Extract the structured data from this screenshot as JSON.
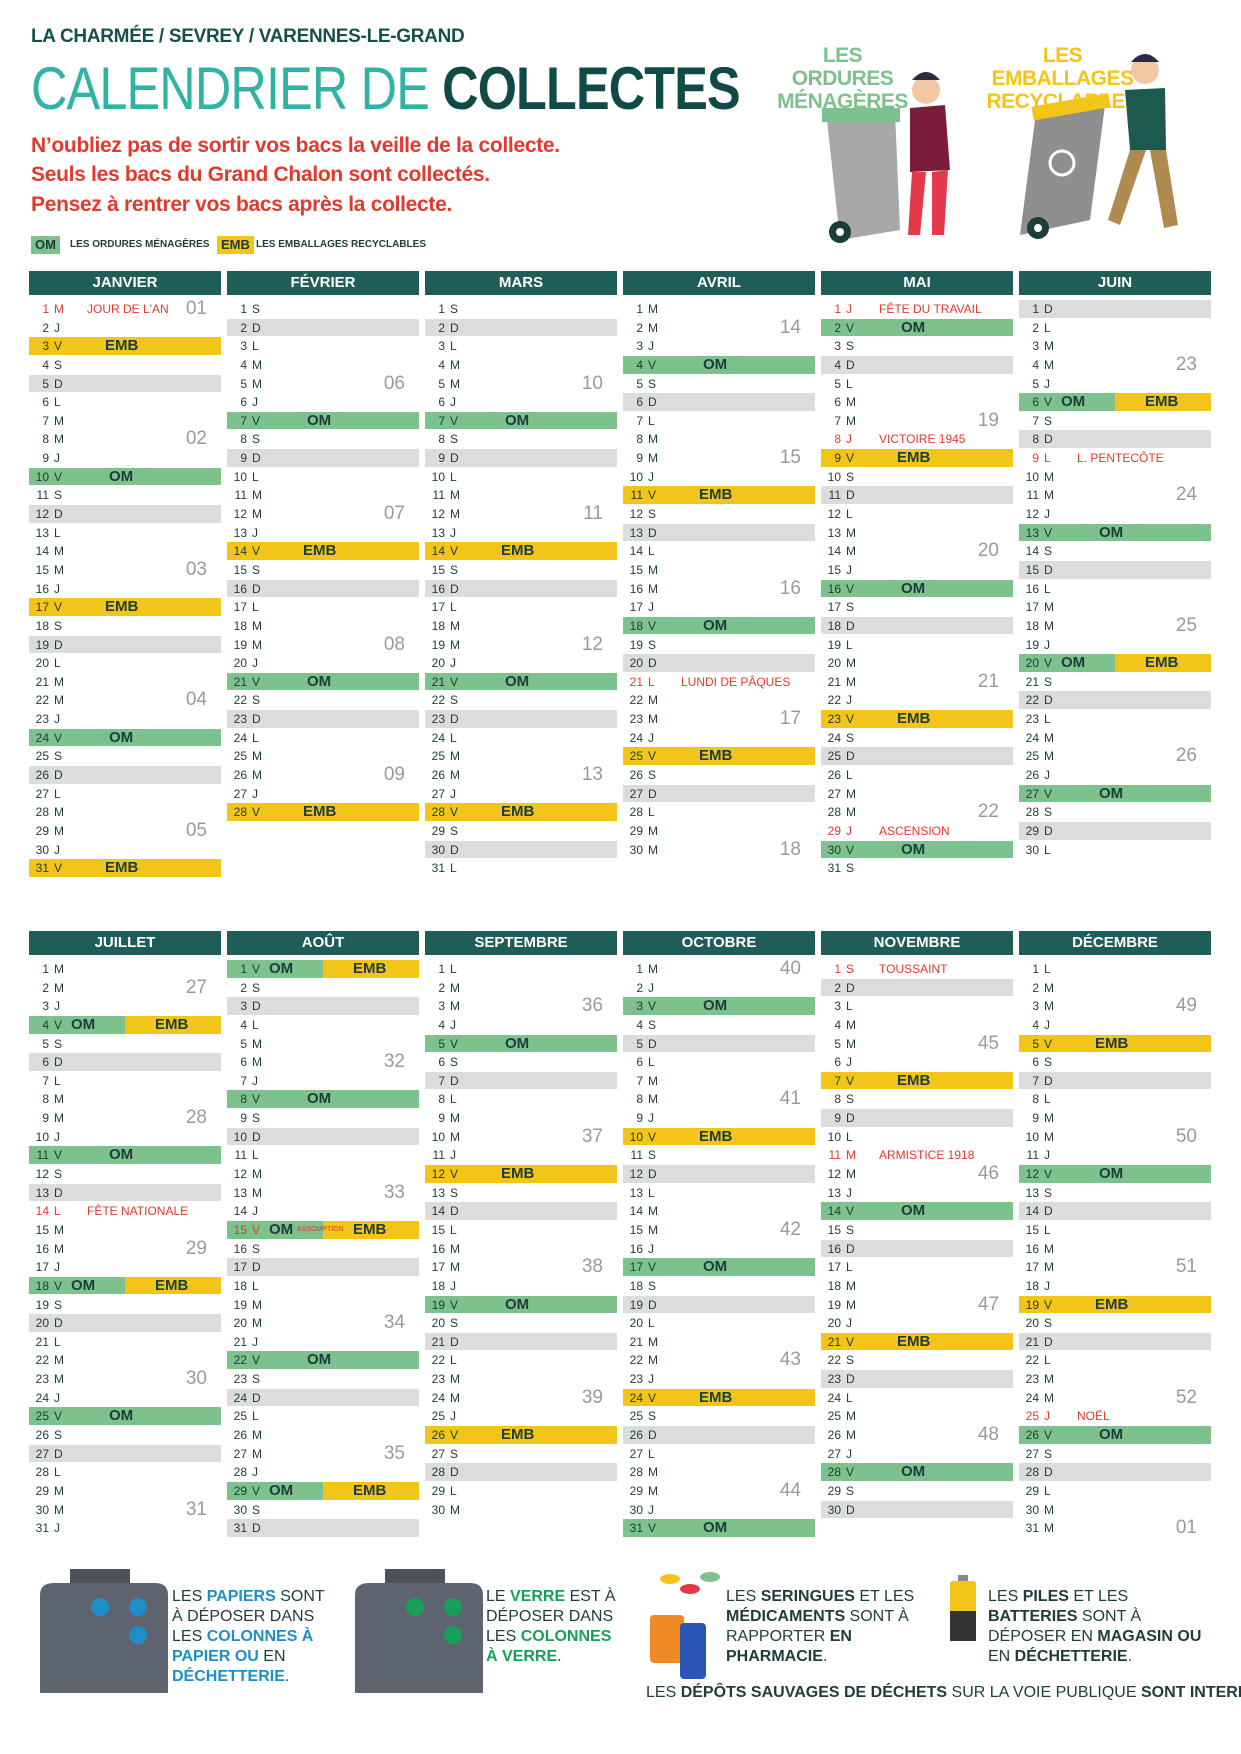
{
  "header": {
    "location": "LA CHARMÉE / SEVREY / VARENNES-LE-GRAND",
    "title_light": "CALENDRIER DE",
    "title_bold": "COLLECTES",
    "notices": [
      "N’oubliez pas de sortir vos bacs la veille de la collecte.",
      "Seuls les bacs du Grand Chalon sont collectés.",
      "Pensez à rentrer vos bacs après la collecte."
    ]
  },
  "illustrations": {
    "om_caption": [
      "LES ORDURES",
      "MÉNAGÈRES"
    ],
    "emb_caption": [
      "LES EMBALLAGES",
      "RECYCLABLES"
    ]
  },
  "legend": {
    "om": "OM",
    "om_label": "LES ORDURES MÉNAGÈRES",
    "emb": "EMB",
    "emb_label": "LES EMBALLAGES RECYCLABLES"
  },
  "months": [
    {
      "name": "JANVIER",
      "days": [
        1,
        2,
        3,
        4,
        5,
        6,
        7,
        8,
        9,
        10,
        11,
        12,
        13,
        14,
        15,
        16,
        17,
        18,
        19,
        20,
        21,
        22,
        23,
        24,
        25,
        26,
        27,
        28,
        29,
        30,
        31
      ],
      "weekdays": "MJVSDLMMJVSDLMMJVSDLMMJVSDLMMJV",
      "om": [
        10,
        24
      ],
      "emb": [
        3,
        17,
        31
      ],
      "holidays": [
        {
          "day": 1,
          "label": "JOUR DE L'AN"
        }
      ],
      "weeks": [
        "01",
        "02",
        "03",
        "04",
        "05"
      ]
    },
    {
      "name": "FÉVRIER",
      "days": [
        1,
        2,
        3,
        4,
        5,
        6,
        7,
        8,
        9,
        10,
        11,
        12,
        13,
        14,
        15,
        16,
        17,
        18,
        19,
        20,
        21,
        22,
        23,
        24,
        25,
        26,
        27,
        28
      ],
      "weekdays": "SDLMMJVSDLMMJVSDLMMJVSDLMMJV",
      "om": [
        7,
        21
      ],
      "emb": [
        14,
        28
      ],
      "holidays": [],
      "weeks": [
        "06",
        "07",
        "08",
        "09"
      ]
    },
    {
      "name": "MARS",
      "days": [
        1,
        2,
        3,
        4,
        5,
        6,
        7,
        8,
        9,
        10,
        11,
        12,
        13,
        14,
        15,
        16,
        17,
        18,
        19,
        20,
        21,
        22,
        23,
        24,
        25,
        26,
        27,
        28,
        29,
        30,
        31
      ],
      "weekdays": "SDLMMJVSDLMMJVSDLMMJVSDLMMJVSDL",
      "om": [
        7,
        21
      ],
      "emb": [
        14,
        28
      ],
      "holidays": [],
      "weeks": [
        "10",
        "11",
        "12",
        "13"
      ]
    },
    {
      "name": "AVRIL",
      "days": [
        1,
        2,
        3,
        4,
        5,
        6,
        7,
        8,
        9,
        10,
        11,
        12,
        13,
        14,
        15,
        16,
        17,
        18,
        19,
        20,
        21,
        22,
        23,
        24,
        25,
        26,
        27,
        28,
        29,
        30
      ],
      "weekdays": "MMJVSDLMMJVSDLMMJVSDLMMJVSDLMM",
      "om": [
        4,
        18
      ],
      "emb": [
        11,
        25
      ],
      "holidays": [
        {
          "day": 21,
          "label": "LUNDI DE PÂQUES"
        }
      ],
      "weeks": [
        "14",
        "15",
        "16",
        "17",
        "18"
      ]
    },
    {
      "name": "MAI",
      "days": [
        1,
        2,
        3,
        4,
        5,
        6,
        7,
        8,
        9,
        10,
        11,
        12,
        13,
        14,
        15,
        16,
        17,
        18,
        19,
        20,
        21,
        22,
        23,
        24,
        25,
        26,
        27,
        28,
        29,
        30,
        31
      ],
      "weekdays": "JVSDLMMJVSDLMMJVSDLMMJVSDLMMJVS",
      "om": [
        2,
        16,
        30
      ],
      "emb": [
        9,
        23
      ],
      "holidays": [
        {
          "day": 1,
          "label": "FÊTE DU TRAVAIL"
        },
        {
          "day": 8,
          "label": "VICTOIRE 1945"
        },
        {
          "day": 29,
          "label": "ASCENSION"
        }
      ],
      "weeks": [
        "19",
        "20",
        "21",
        "22"
      ]
    },
    {
      "name": "JUIN",
      "days": [
        1,
        2,
        3,
        4,
        5,
        6,
        7,
        8,
        9,
        10,
        11,
        12,
        13,
        14,
        15,
        16,
        17,
        18,
        19,
        20,
        21,
        22,
        23,
        24,
        25,
        26,
        27,
        28,
        29,
        30
      ],
      "weekdays": "DLMMJVSDLMMJVSDLMMJVSDLMMJVSDL",
      "om": [
        6,
        13,
        20,
        27
      ],
      "emb": [
        6,
        20
      ],
      "holidays": [
        {
          "day": 9,
          "label": "L. PENTECÔTE"
        }
      ],
      "weeks": [
        "23",
        "24",
        "25",
        "26"
      ]
    },
    {
      "name": "JUILLET",
      "days": [
        1,
        2,
        3,
        4,
        5,
        6,
        7,
        8,
        9,
        10,
        11,
        12,
        13,
        14,
        15,
        16,
        17,
        18,
        19,
        20,
        21,
        22,
        23,
        24,
        25,
        26,
        27,
        28,
        29,
        30,
        31
      ],
      "weekdays": "MMJVSDLMMJVSDLMMJVSDLMMJVSDLMMJ",
      "om": [
        4,
        11,
        18,
        25
      ],
      "emb": [
        4,
        18
      ],
      "holidays": [
        {
          "day": 14,
          "label": "FÊTE NATIONALE"
        }
      ],
      "weeks": [
        "27",
        "28",
        "29",
        "30",
        "31"
      ]
    },
    {
      "name": "AOÛT",
      "days": [
        1,
        2,
        3,
        4,
        5,
        6,
        7,
        8,
        9,
        10,
        11,
        12,
        13,
        14,
        15,
        16,
        17,
        18,
        19,
        20,
        21,
        22,
        23,
        24,
        25,
        26,
        27,
        28,
        29,
        30,
        31
      ],
      "weekdays": "VSDLMMJVSDLMMJVSDLMMJVSDLMMJVSD",
      "om": [
        1,
        8,
        15,
        22,
        29
      ],
      "emb": [
        1,
        15,
        29
      ],
      "holidays": [
        {
          "day": 15,
          "label": "ASSOMPTION"
        }
      ],
      "weeks": [
        "32",
        "33",
        "34",
        "35"
      ]
    },
    {
      "name": "SEPTEMBRE",
      "days": [
        1,
        2,
        3,
        4,
        5,
        6,
        7,
        8,
        9,
        10,
        11,
        12,
        13,
        14,
        15,
        16,
        17,
        18,
        19,
        20,
        21,
        22,
        23,
        24,
        25,
        26,
        27,
        28,
        29,
        30
      ],
      "weekdays": "LMMJVSDLMMJVSDLMMJVSDLMMJVSDLM",
      "om": [
        5,
        19
      ],
      "emb": [
        12,
        26
      ],
      "holidays": [],
      "weeks": [
        "36",
        "37",
        "38",
        "39"
      ]
    },
    {
      "name": "OCTOBRE",
      "days": [
        1,
        2,
        3,
        4,
        5,
        6,
        7,
        8,
        9,
        10,
        11,
        12,
        13,
        14,
        15,
        16,
        17,
        18,
        19,
        20,
        21,
        22,
        23,
        24,
        25,
        26,
        27,
        28,
        29,
        30,
        31
      ],
      "weekdays": "MJVSDLMMJVSDLMMJVSDLMMJVSDLMMJV",
      "om": [
        3,
        17,
        31
      ],
      "emb": [
        10,
        24
      ],
      "holidays": [],
      "weeks": [
        "40",
        "41",
        "42",
        "43",
        "44"
      ]
    },
    {
      "name": "NOVEMBRE",
      "days": [
        1,
        2,
        3,
        4,
        5,
        6,
        7,
        8,
        9,
        10,
        11,
        12,
        13,
        14,
        15,
        16,
        17,
        18,
        19,
        20,
        21,
        22,
        23,
        24,
        25,
        26,
        27,
        28,
        29,
        30
      ],
      "weekdays": "SDLMMJVSDLMMJVSDLMMJVSDLMMJVSD",
      "om": [
        14,
        28
      ],
      "emb": [
        7,
        21
      ],
      "holidays": [
        {
          "day": 1,
          "label": "TOUSSAINT"
        },
        {
          "day": 11,
          "label": "ARMISTICE 1918"
        }
      ],
      "weeks": [
        "45",
        "46",
        "47",
        "48"
      ]
    },
    {
      "name": "DÉCEMBRE",
      "days": [
        1,
        2,
        3,
        4,
        5,
        6,
        7,
        8,
        9,
        10,
        11,
        12,
        13,
        14,
        15,
        16,
        17,
        18,
        19,
        20,
        21,
        22,
        23,
        24,
        25,
        26,
        27,
        28,
        29,
        30,
        31
      ],
      "weekdays": "LMMJVSDLMMJVSDLMMJVSDLMMJVSDLMM",
      "om": [
        12,
        26
      ],
      "emb": [
        5,
        19
      ],
      "holidays": [
        {
          "day": 25,
          "label": "NOËL"
        }
      ],
      "weeks": [
        "49",
        "50",
        "51",
        "52",
        "01"
      ]
    }
  ],
  "info": [
    {
      "accent_color": "#1e8fc6",
      "parts": [
        {
          "text": "LES ",
          "style": "normal"
        },
        {
          "text": "PAPIERS",
          "style": "accent"
        },
        {
          "text": " SONT À DÉPOSER DANS LES ",
          "style": "normal"
        },
        {
          "text": "COLONNES À PAPIER",
          "style": "accent"
        },
        {
          "text": " OU",
          "style": "accent"
        },
        {
          "text": " EN ",
          "style": "normal"
        },
        {
          "text": "DÉCHETTERIE",
          "style": "accent"
        },
        {
          "text": ".",
          "style": "normal"
        }
      ]
    },
    {
      "accent_color": "#17a05a",
      "parts": [
        {
          "text": "LE ",
          "style": "normal"
        },
        {
          "text": "VERRE",
          "style": "accent"
        },
        {
          "text": " EST À DÉPOSER DANS LES ",
          "style": "normal"
        },
        {
          "text": "COLONNES À VERRE",
          "style": "accent"
        },
        {
          "text": ".",
          "style": "normal"
        }
      ]
    },
    {
      "accent_color": "#1d3c3a",
      "parts": [
        {
          "text": "LES ",
          "style": "normal"
        },
        {
          "text": "SERINGUES",
          "style": "accent"
        },
        {
          "text": " ET LES ",
          "style": "normal"
        },
        {
          "text": "MÉDICAMENTS",
          "style": "accent"
        },
        {
          "text": " SONT À RAPPORTER ",
          "style": "normal"
        },
        {
          "text": "EN PHARMACIE",
          "style": "accent"
        },
        {
          "text": ".",
          "style": "normal"
        }
      ]
    },
    {
      "accent_color": "#1d3c3a",
      "parts": [
        {
          "text": "LES ",
          "style": "normal"
        },
        {
          "text": "PILES",
          "style": "accent"
        },
        {
          "text": " ET LES ",
          "style": "normal"
        },
        {
          "text": "BATTERIES",
          "style": "accent"
        },
        {
          "text": " SONT À DÉPOSER EN ",
          "style": "normal"
        },
        {
          "text": "MAGASIN",
          "style": "accent"
        },
        {
          "text": " OU",
          "style": "accent"
        },
        {
          "text": " EN ",
          "style": "normal"
        },
        {
          "text": "DÉCHETTERIE",
          "style": "accent"
        },
        {
          "text": ".",
          "style": "normal"
        }
      ]
    }
  ],
  "footer": {
    "parts": [
      {
        "text": "LES ",
        "style": "normal"
      },
      {
        "text": "DÉPÔTS SAUVAGES DE DÉCHETS",
        "style": "accent"
      },
      {
        "text": " SUR LA VOIE PUBLIQUE ",
        "style": "normal"
      },
      {
        "text": "SONT INTERDITS",
        "style": "accent"
      },
      {
        "text": ".",
        "style": "normal"
      }
    ]
  }
}
